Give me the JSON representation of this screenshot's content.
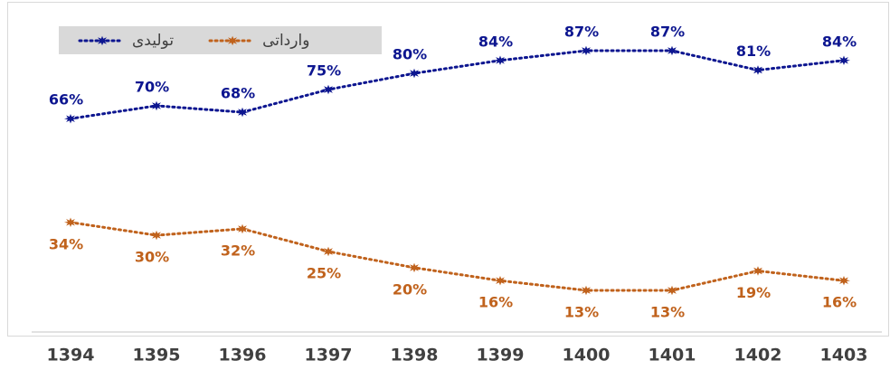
{
  "chart_data": {
    "type": "line",
    "categories": [
      "1394",
      "1395",
      "1396",
      "1397",
      "1398",
      "1399",
      "1400",
      "1401",
      "1402",
      "1403"
    ],
    "series": [
      {
        "name": "تولیدی",
        "color": "#0d1690",
        "values": [
          66,
          70,
          68,
          75,
          80,
          84,
          87,
          87,
          81,
          84
        ],
        "value_labels": [
          "66%",
          "70%",
          "68%",
          "75%",
          "80%",
          "84%",
          "87%",
          "87%",
          "81%",
          "84%"
        ]
      },
      {
        "name": "وارداتی",
        "color": "#c0621c",
        "values": [
          34,
          30,
          32,
          25,
          20,
          16,
          13,
          13,
          19,
          16
        ],
        "value_labels": [
          "34%",
          "30%",
          "32%",
          "25%",
          "20%",
          "16%",
          "13%",
          "13%",
          "19%",
          "16%"
        ]
      }
    ],
    "ylim": [
      0,
      100
    ],
    "legend": "top-left"
  }
}
